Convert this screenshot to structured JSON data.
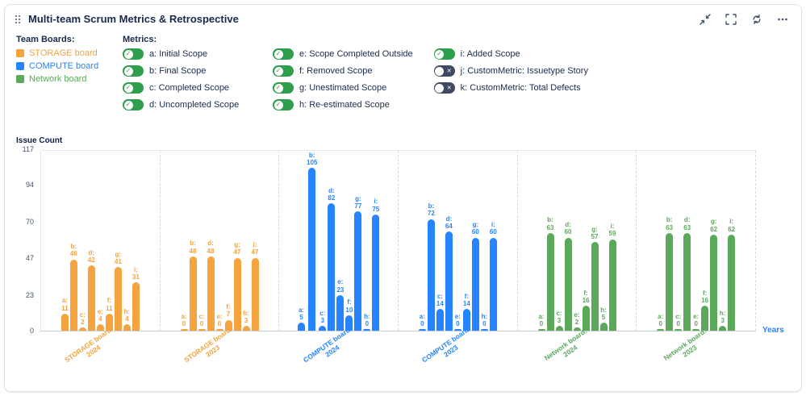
{
  "header": {
    "title": "Multi-team Scrum Metrics & Retrospective"
  },
  "icons": {
    "check": "✓",
    "cross": "✕"
  },
  "legend": {
    "team_boards_label": "Team Boards:",
    "boards": [
      {
        "label": "STORAGE board",
        "color": "#F5A33C"
      },
      {
        "label": "COMPUTE board",
        "color": "#2684FF"
      },
      {
        "label": "Network board",
        "color": "#5BA85B"
      }
    ],
    "metrics_label": "Metrics:",
    "metrics": [
      {
        "label": "a: Initial Scope",
        "on": true,
        "col": 1
      },
      {
        "label": "b: Final Scope",
        "on": true,
        "col": 1
      },
      {
        "label": "c: Completed Scope",
        "on": true,
        "col": 1
      },
      {
        "label": "d: Uncompleted Scope",
        "on": true,
        "col": 1
      },
      {
        "label": "e: Scope Completed Outside",
        "on": true,
        "col": 2
      },
      {
        "label": "f: Removed Scope",
        "on": true,
        "col": 2
      },
      {
        "label": "g: Unestimated Scope",
        "on": true,
        "col": 2
      },
      {
        "label": "h: Re-estimated Scope",
        "on": true,
        "col": 2
      },
      {
        "label": "i: Added Scope",
        "on": true,
        "col": 3
      },
      {
        "label": "j: CustomMetric: Issuetype Story",
        "on": false,
        "col": 3
      },
      {
        "label": "k: CustomMetric: Total Defects",
        "on": false,
        "col": 3
      }
    ]
  },
  "chart_data": {
    "type": "bar",
    "title": "Multi-team Scrum Metrics & Retrospective",
    "ylabel": "Issue Count",
    "xlabel": "Years",
    "ylim": [
      0,
      117
    ],
    "yticks": [
      0,
      23,
      47,
      70,
      94,
      117
    ],
    "grid": false,
    "legend_position": "top",
    "metric_keys": [
      "a",
      "b",
      "c",
      "d",
      "e",
      "f",
      "g",
      "h",
      "i"
    ],
    "groups": [
      {
        "label": "STORAGE board: 2024",
        "color": "#F5A33C",
        "values": {
          "a": 11,
          "b": 46,
          "c": 2,
          "d": 42,
          "e": 4,
          "f": 11,
          "g": 41,
          "h": 4,
          "i": 31
        }
      },
      {
        "label": "STORAGE board: 2023",
        "color": "#F5A33C",
        "values": {
          "a": 0,
          "b": 48,
          "c": 0,
          "d": 48,
          "e": 0,
          "f": 7,
          "g": 47,
          "h": 3,
          "i": 47
        }
      },
      {
        "label": "COMPUTE board: 2024",
        "color": "#2684FF",
        "values": {
          "a": 5,
          "b": 105,
          "c": 3,
          "d": 82,
          "e": 23,
          "f": 10,
          "g": 77,
          "h": 0,
          "i": 75
        }
      },
      {
        "label": "COMPUTE board: 2023",
        "color": "#2684FF",
        "values": {
          "a": 0,
          "b": 72,
          "c": 14,
          "d": 64,
          "e": 0,
          "f": 14,
          "g": 60,
          "h": 0,
          "i": 60
        }
      },
      {
        "label": "Network board: 2024",
        "color": "#5BA85B",
        "values": {
          "a": 0,
          "b": 63,
          "c": 3,
          "d": 60,
          "e": 2,
          "f": 16,
          "g": 57,
          "h": 5,
          "i": 59
        }
      },
      {
        "label": "Network board: 2023",
        "color": "#5BA85B",
        "values": {
          "a": 0,
          "b": 63,
          "c": 0,
          "d": 63,
          "e": 0,
          "f": 16,
          "g": 62,
          "h": 3,
          "i": 62
        }
      }
    ]
  }
}
